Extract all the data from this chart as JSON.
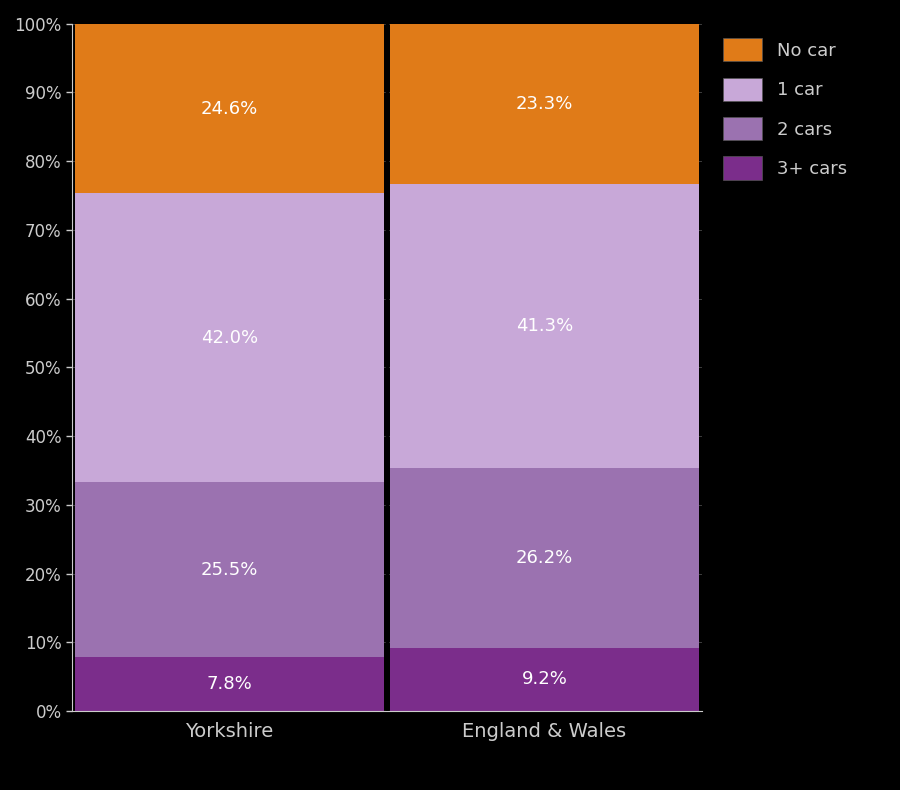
{
  "categories": [
    "Yorkshire",
    "England & Wales"
  ],
  "segments": [
    "3+ cars",
    "2 cars",
    "1 car",
    "No car"
  ],
  "values": {
    "Yorkshire": [
      7.8,
      25.5,
      42.0,
      24.6
    ],
    "England & Wales": [
      9.2,
      26.2,
      41.3,
      23.3
    ]
  },
  "colors": [
    "#7b2d8b",
    "#9b72b0",
    "#c8a8d8",
    "#e07b18"
  ],
  "background_color": "#000000",
  "text_color": "#cccccc",
  "bar_edge_color": "#000000",
  "label_color": "#ffffff",
  "ytick_labels": [
    "0%",
    "10%",
    "20%",
    "30%",
    "40%",
    "50%",
    "60%",
    "70%",
    "80%",
    "90%",
    "100%"
  ],
  "ytick_values": [
    0,
    10,
    20,
    30,
    40,
    50,
    60,
    70,
    80,
    90,
    100
  ],
  "legend_labels": [
    "No car",
    "1 car",
    "2 cars",
    "3+ cars"
  ],
  "legend_colors": [
    "#e07b18",
    "#c8a8d8",
    "#9b72b0",
    "#7b2d8b"
  ],
  "figsize": [
    9.0,
    7.9
  ],
  "dpi": 100,
  "bar_width": 0.98,
  "x_positions": [
    0,
    1
  ],
  "xlim": [
    -0.5,
    1.5
  ]
}
